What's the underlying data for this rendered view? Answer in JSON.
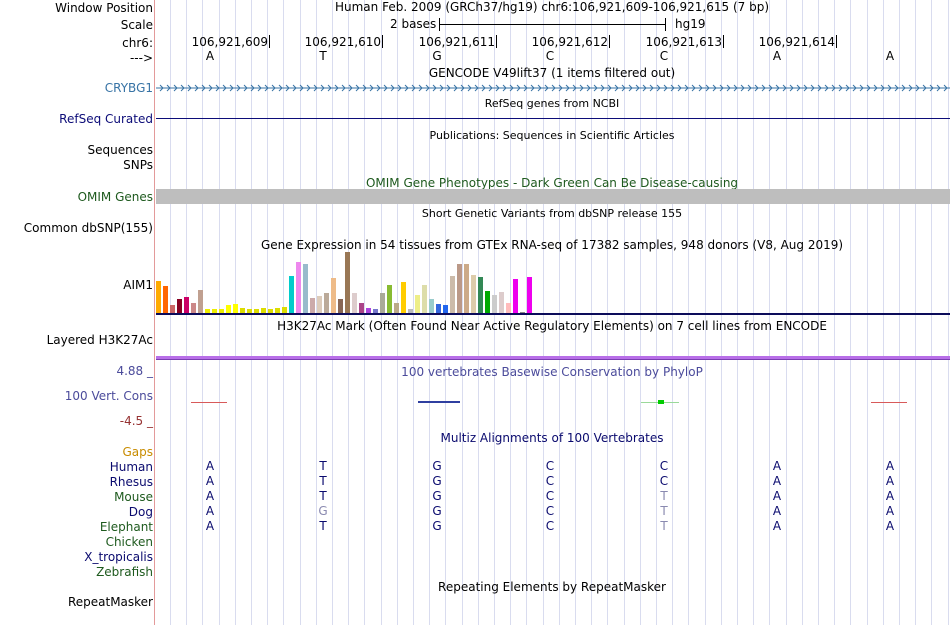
{
  "colors": {
    "gene_blue": "#3773a5",
    "refseq_navy": "#0c0c78",
    "omim_green": "#1e5a1e",
    "gaps_orange": "#c88c00",
    "cons_blue": "#4b4b9b",
    "cons_red": "#963232",
    "multiz_navy": "#0a0a6e",
    "grey_base": "#8a8ab0",
    "h3k27ac_violet": "#b86fe8",
    "omim_bar_grey": "#bebebe"
  },
  "header": {
    "window_position_label": "Window Position",
    "window_position_value": "Human Feb. 2009 (GRCh37/hg19)   chr6:106,921,609-106,921,615 (7 bp)",
    "scale_label": "Scale",
    "scale_bar_label": "2 bases",
    "scale_assembly": "hg19",
    "chrom_label": "chr6:",
    "strand_label": "--->",
    "coordinates": [
      "106,921,609",
      "106,921,610",
      "106,921,611",
      "106,921,612",
      "106,921,613",
      "106,921,614"
    ],
    "reference_bases": [
      "A",
      "T",
      "G",
      "C",
      "C",
      "A",
      "A"
    ]
  },
  "tracks": {
    "gencode": {
      "title": "GENCODE V49lift37 (1 items filtered out)",
      "label": "CRYBG1"
    },
    "refseq": {
      "title": "RefSeq genes from NCBI",
      "label": "RefSeq Curated"
    },
    "publications": {
      "title": "Publications: Sequences in Scientific Articles",
      "label_line1": "Sequences",
      "label_line2": "SNPs"
    },
    "omim": {
      "title": "OMIM Gene Phenotypes - Dark Green Can Be Disease-causing",
      "label": "OMIM Genes"
    },
    "dbsnp": {
      "title": "Short Genetic Variants from dbSNP release 155",
      "label": "Common dbSNP(155)"
    },
    "gtex": {
      "title": "Gene Expression in 54 tissues from GTEx RNA-seq of 17382 samples, 948 donors (V8, Aug 2019)",
      "label": "AIM1"
    },
    "h3k27ac": {
      "title": "H3K27Ac Mark (Often Found Near Active Regulatory Elements) on 7 cell lines from ENCODE",
      "label": "Layered H3K27Ac"
    },
    "phylop": {
      "title": "100 vertebrates Basewise Conservation by PhyloP",
      "label": "100 Vert. Cons",
      "max": "4.88 _",
      "min": "-4.5 _"
    },
    "gaps": {
      "label": "Gaps"
    },
    "multiz": {
      "title": "Multiz Alignments of 100 Vertebrates",
      "species": [
        {
          "name": "Human",
          "bases": [
            "A",
            "T",
            "G",
            "C",
            "C",
            "A",
            "A"
          ]
        },
        {
          "name": "Rhesus",
          "bases": [
            "A",
            "T",
            "G",
            "C",
            "C",
            "A",
            "A"
          ]
        },
        {
          "name": "Mouse",
          "bases": [
            "A",
            "T",
            "G",
            "C",
            "T",
            "A",
            "A"
          ]
        },
        {
          "name": "Dog",
          "bases": [
            "A",
            "G",
            "G",
            "C",
            "T",
            "A",
            "A"
          ]
        },
        {
          "name": "Elephant",
          "bases": [
            "A",
            "T",
            "G",
            "C",
            "T",
            "A",
            "A"
          ]
        },
        {
          "name": "Chicken",
          "bases": []
        },
        {
          "name": "X_tropicalis",
          "bases": []
        },
        {
          "name": "Zebrafish",
          "bases": []
        }
      ]
    },
    "repeatmasker": {
      "title": "Repeating Elements by RepeatMasker",
      "label": "RepeatMasker"
    }
  },
  "chart_data": {
    "type": "bar",
    "title": "Gene Expression in 54 tissues from GTEx RNA-seq of 17382 samples, 948 donors (V8, Aug 2019)",
    "xlabel": "",
    "ylabel": "",
    "ylim": [
      0,
      60
    ],
    "values": [
      31,
      27,
      8,
      14,
      16,
      10,
      23,
      4,
      4,
      4,
      8,
      9,
      5,
      4,
      4,
      5,
      4,
      5,
      6,
      36,
      50,
      48,
      15,
      17,
      20,
      34,
      14,
      60,
      20,
      10,
      5,
      4,
      20,
      28,
      10,
      30,
      4,
      18,
      28,
      14,
      9,
      8,
      36,
      48,
      48,
      37,
      35,
      22,
      18,
      21,
      10,
      33,
      1,
      35
    ],
    "bar_colors": [
      "#ffaa00",
      "#ff6600",
      "#cc6666",
      "#880022",
      "#cc0066",
      "#cc8888",
      "#c0a090",
      "#eeee00",
      "#eeee00",
      "#eeee00",
      "#ffff00",
      "#ffff00",
      "#dddd00",
      "#dddd00",
      "#dddd00",
      "#dddd00",
      "#dddd00",
      "#dddd00",
      "#dddd00",
      "#00cccc",
      "#ee88ee",
      "#99bbcc",
      "#ccaaaa",
      "#ddccbb",
      "#bbaa99",
      "#eebb88",
      "#886655",
      "#997755",
      "#ddcccc",
      "#aa4488",
      "#aa44dd",
      "#7777cc",
      "#aaaa99",
      "#88bb33",
      "#bbaa88",
      "#ffcc00",
      "#bbbbbb",
      "#eeee88",
      "#ddddaa",
      "#99cccc",
      "#3366dd",
      "#2266ee",
      "#ccbbaa",
      "#bb9988",
      "#ccaa88",
      "#ddccaa",
      "#338855",
      "#00aa00",
      "#cccccc",
      "#ddcccc",
      "#ffbbbb",
      "#ee00ee",
      "#888888",
      "#ee00ee"
    ]
  }
}
